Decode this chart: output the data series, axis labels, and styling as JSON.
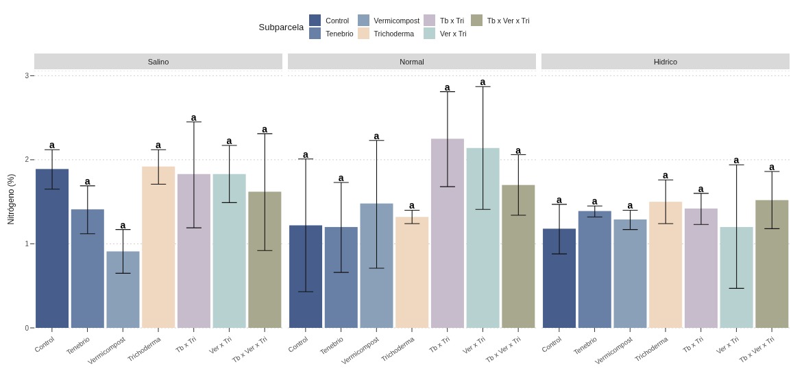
{
  "chart_data": [
    {
      "type": "bar",
      "title": "Salino",
      "ylabel": "Nitrógeno (%)",
      "legend_title": "Subparcela",
      "legend": "top",
      "grid": "y",
      "stacked": true,
      "ylim": [
        0,
        3.06
      ],
      "yticks": [
        0,
        1,
        2,
        3
      ],
      "categories": [
        "Control",
        "Tenebrio",
        "Vermicompost",
        "Trichoderma",
        "Tb x Tri",
        "Ver x Tri",
        "Tb x Ver x Tri"
      ],
      "series": [
        {
          "name": "Control",
          "color": "#475e8c",
          "values": [
            1.89,
            null,
            null,
            null,
            null,
            null,
            null
          ],
          "errors": [
            [
              1.65,
              2.12
            ],
            null,
            null,
            null,
            null,
            null,
            null
          ]
        },
        {
          "name": "Tenebrio",
          "color": "#687fa6",
          "values": [
            null,
            1.41,
            null,
            null,
            null,
            null,
            null
          ],
          "errors": [
            null,
            [
              1.12,
              1.69
            ],
            null,
            null,
            null,
            null,
            null
          ]
        },
        {
          "name": "Vermicompost",
          "color": "#89a0b8",
          "values": [
            null,
            null,
            0.91,
            null,
            null,
            null,
            null
          ],
          "errors": [
            null,
            null,
            [
              0.65,
              1.17
            ],
            null,
            null,
            null,
            null
          ]
        },
        {
          "name": "Trichoderma",
          "color": "#efd8bf",
          "values": [
            null,
            null,
            null,
            1.92,
            null,
            null,
            null
          ],
          "errors": [
            null,
            null,
            null,
            [
              1.71,
              2.12
            ],
            null,
            null,
            null
          ]
        },
        {
          "name": "Tb x Tri",
          "color": "#c7bccb",
          "values": [
            null,
            null,
            null,
            null,
            1.83,
            null,
            null
          ],
          "errors": [
            null,
            null,
            null,
            null,
            [
              1.19,
              2.45
            ],
            null,
            null
          ]
        },
        {
          "name": "Ver x Tri",
          "color": "#b7d1d1",
          "values": [
            null,
            null,
            null,
            null,
            null,
            1.83,
            null
          ],
          "errors": [
            null,
            null,
            null,
            null,
            null,
            [
              1.49,
              2.17
            ],
            null
          ]
        },
        {
          "name": "Tb x Ver x Tri",
          "color": "#a8a88e",
          "values": [
            null,
            null,
            null,
            null,
            null,
            null,
            1.62
          ],
          "errors": [
            null,
            null,
            null,
            null,
            null,
            null,
            [
              0.92,
              2.31
            ]
          ]
        }
      ],
      "annotations": [
        {
          "text": "a",
          "x": "Control",
          "y": 2.12
        },
        {
          "text": "a",
          "x": "Tenebrio",
          "y": 1.69
        },
        {
          "text": "a",
          "x": "Vermicompost",
          "y": 1.17
        },
        {
          "text": "a",
          "x": "Trichoderma",
          "y": 2.12
        },
        {
          "text": "a",
          "x": "Tb x Tri",
          "y": 2.45
        },
        {
          "text": "a",
          "x": "Ver x Tri",
          "y": 2.17
        },
        {
          "text": "a",
          "x": "Tb x Ver x Tri",
          "y": 2.31
        }
      ]
    },
    {
      "type": "bar",
      "title": "Normal",
      "grid": "y",
      "stacked": true,
      "ylim": [
        0,
        3.06
      ],
      "yticks": [
        0,
        1,
        2,
        3
      ],
      "tick_labels": "x",
      "categories": [
        "Control",
        "Tenebrio",
        "Vermicompost",
        "Trichoderma",
        "Tb x Tri",
        "Ver x Tri",
        "Tb x Ver x Tri"
      ],
      "series": [
        {
          "color": "#475e8c",
          "values": [
            1.22,
            null,
            null,
            null,
            null,
            null,
            null
          ],
          "errors": [
            [
              0.43,
              2.01
            ],
            null,
            null,
            null,
            null,
            null,
            null
          ]
        },
        {
          "color": "#687fa6",
          "values": [
            null,
            1.2,
            null,
            null,
            null,
            null,
            null
          ],
          "errors": [
            null,
            [
              0.66,
              1.73
            ],
            null,
            null,
            null,
            null,
            null
          ]
        },
        {
          "color": "#89a0b8",
          "values": [
            null,
            null,
            1.48,
            null,
            null,
            null,
            null
          ],
          "errors": [
            null,
            null,
            [
              0.71,
              2.23
            ],
            null,
            null,
            null,
            null
          ]
        },
        {
          "color": "#efd8bf",
          "values": [
            null,
            null,
            null,
            1.32,
            null,
            null,
            null
          ],
          "errors": [
            null,
            null,
            null,
            [
              1.24,
              1.4
            ],
            null,
            null,
            null
          ]
        },
        {
          "color": "#c7bccb",
          "values": [
            null,
            null,
            null,
            null,
            2.25,
            null,
            null
          ],
          "errors": [
            null,
            null,
            null,
            null,
            [
              1.68,
              2.81
            ],
            null,
            null
          ]
        },
        {
          "color": "#b7d1d1",
          "values": [
            null,
            null,
            null,
            null,
            null,
            2.14,
            null
          ],
          "errors": [
            null,
            null,
            null,
            null,
            null,
            [
              1.41,
              2.87
            ],
            null
          ]
        },
        {
          "color": "#a8a88e",
          "values": [
            null,
            null,
            null,
            null,
            null,
            null,
            1.7
          ],
          "errors": [
            null,
            null,
            null,
            null,
            null,
            null,
            [
              1.34,
              2.06
            ]
          ]
        }
      ],
      "annotations": [
        {
          "text": "a",
          "x": "Control",
          "y": 2.01
        },
        {
          "text": "a",
          "x": "Tenebrio",
          "y": 1.73
        },
        {
          "text": "a",
          "x": "Vermicompost",
          "y": 2.23
        },
        {
          "text": "a",
          "x": "Trichoderma",
          "y": 1.4
        },
        {
          "text": "a",
          "x": "Tb x Tri",
          "y": 2.81
        },
        {
          "text": "a",
          "x": "Ver x Tri",
          "y": 2.87
        },
        {
          "text": "a",
          "x": "Tb x Ver x Tri",
          "y": 2.06
        }
      ]
    },
    {
      "type": "bar",
      "title": "Hidrico",
      "grid": "y",
      "stacked": true,
      "ylim": [
        0,
        3.06
      ],
      "yticks": [
        0,
        1,
        2,
        3
      ],
      "tick_labels": "x",
      "categories": [
        "Control",
        "Tenebrio",
        "Vermicompost",
        "Trichoderma",
        "Tb x Tri",
        "Ver x Tri",
        "Tb x Ver x Tri"
      ],
      "series": [
        {
          "color": "#475e8c",
          "values": [
            1.18,
            null,
            null,
            null,
            null,
            null,
            null
          ],
          "errors": [
            [
              0.88,
              1.47
            ],
            null,
            null,
            null,
            null,
            null,
            null
          ]
        },
        {
          "color": "#687fa6",
          "values": [
            null,
            1.39,
            null,
            null,
            null,
            null,
            null
          ],
          "errors": [
            null,
            [
              1.32,
              1.45
            ],
            null,
            null,
            null,
            null,
            null
          ]
        },
        {
          "color": "#89a0b8",
          "values": [
            null,
            null,
            1.29,
            null,
            null,
            null,
            null
          ],
          "errors": [
            null,
            null,
            [
              1.17,
              1.4
            ],
            null,
            null,
            null,
            null
          ]
        },
        {
          "color": "#efd8bf",
          "values": [
            null,
            null,
            null,
            1.5,
            null,
            null,
            null
          ],
          "errors": [
            null,
            null,
            null,
            [
              1.24,
              1.76
            ],
            null,
            null,
            null
          ]
        },
        {
          "color": "#c7bccb",
          "values": [
            null,
            null,
            null,
            null,
            1.42,
            null,
            null
          ],
          "errors": [
            null,
            null,
            null,
            null,
            [
              1.23,
              1.6
            ],
            null,
            null
          ]
        },
        {
          "color": "#b7d1d1",
          "values": [
            null,
            null,
            null,
            null,
            null,
            1.2,
            null
          ],
          "errors": [
            null,
            null,
            null,
            null,
            null,
            [
              0.47,
              1.94
            ],
            null
          ]
        },
        {
          "color": "#a8a88e",
          "values": [
            null,
            null,
            null,
            null,
            null,
            null,
            1.52
          ],
          "errors": [
            null,
            null,
            null,
            null,
            null,
            null,
            [
              1.18,
              1.86
            ]
          ]
        }
      ],
      "annotations": [
        {
          "text": "a",
          "x": "Control",
          "y": 1.47
        },
        {
          "text": "a",
          "x": "Tenebrio",
          "y": 1.45
        },
        {
          "text": "a",
          "x": "Vermicompost",
          "y": 1.4
        },
        {
          "text": "a",
          "x": "Trichoderma",
          "y": 1.76
        },
        {
          "text": "a",
          "x": "Tb x Tri",
          "y": 1.6
        },
        {
          "text": "a",
          "x": "Ver x Tri",
          "y": 1.94
        },
        {
          "text": "a",
          "x": "Tb x Ver x Tri",
          "y": 1.86
        }
      ]
    }
  ]
}
